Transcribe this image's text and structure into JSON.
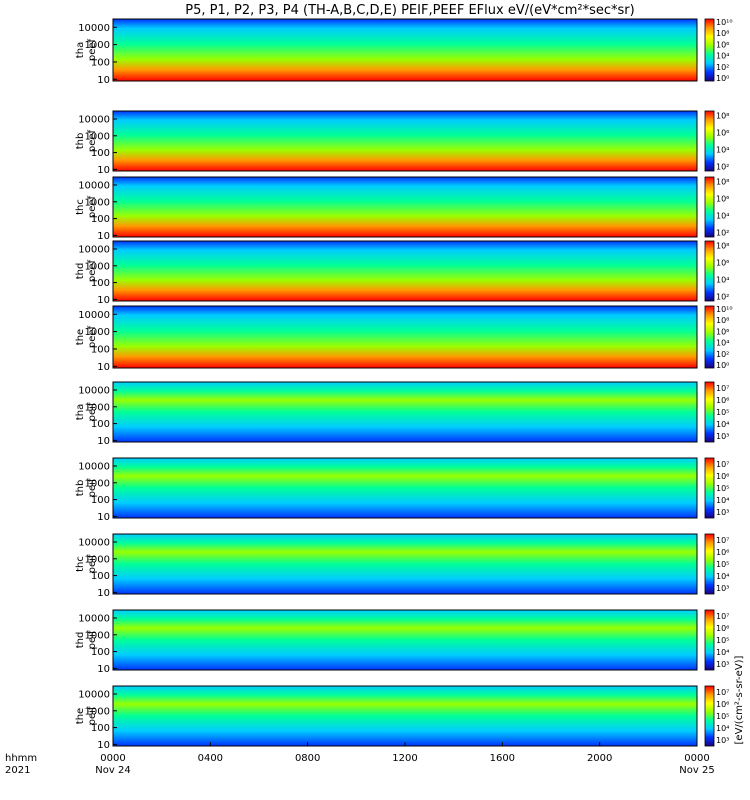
{
  "title": "P5, P1, P2, P3, P4 (TH-A,B,C,D,E) PEIF,PEEF EFlux eV/(eV*cm²*sec*sr)",
  "colorbar_label": "[eV/(cm²-s-sr-eV)]",
  "colormap": [
    "#1a0080",
    "#0033ff",
    "#00ccff",
    "#00ff99",
    "#99ff00",
    "#ffff00",
    "#ff9900",
    "#ff0000"
  ],
  "time_axis": {
    "row_label_1": "hhmm",
    "row_label_2": "2021",
    "ticks": [
      {
        "label": "0000",
        "sub": "Nov 24",
        "hour": 0
      },
      {
        "label": "0400",
        "sub": "",
        "hour": 4
      },
      {
        "label": "0800",
        "sub": "",
        "hour": 8
      },
      {
        "label": "1200",
        "sub": "",
        "hour": 12
      },
      {
        "label": "1600",
        "sub": "",
        "hour": 16
      },
      {
        "label": "2000",
        "sub": "",
        "hour": 20
      },
      {
        "label": "0000",
        "sub": "Nov 25",
        "hour": 24
      }
    ]
  },
  "chart_data": {
    "type": "heatmap",
    "x_range_hours": [
      0,
      24
    ],
    "y_scale": "log",
    "y_range_eV": [
      8,
      30000
    ],
    "y_ticks": [
      {
        "value": 10,
        "label": "10"
      },
      {
        "value": 100,
        "label": "100"
      },
      {
        "value": 1000,
        "label": "1000"
      },
      {
        "value": 10000,
        "label": "10000"
      }
    ],
    "panels": [
      {
        "line1": "tha",
        "line2": "peef",
        "species": "electron",
        "cb": [
          "10¹⁰",
          "10⁸",
          "10⁶",
          "10⁴",
          "10²",
          "10⁰"
        ],
        "cbexp": [
          10,
          8,
          6,
          4,
          2,
          0
        ]
      },
      {
        "line1": "thb",
        "line2": "peef",
        "species": "electron",
        "cb": [
          "10⁸",
          "10⁶",
          "10⁴",
          "10²"
        ],
        "cbexp": [
          8,
          6,
          4,
          2
        ]
      },
      {
        "line1": "thc",
        "line2": "peef",
        "species": "electron",
        "cb": [
          "10⁸",
          "10⁶",
          "10⁴",
          "10²"
        ],
        "cbexp": [
          8,
          6,
          4,
          2
        ]
      },
      {
        "line1": "thd",
        "line2": "peef",
        "species": "electron",
        "cb": [
          "10⁸",
          "10⁶",
          "10⁴",
          "10²"
        ],
        "cbexp": [
          8,
          6,
          4,
          2
        ]
      },
      {
        "line1": "the",
        "line2": "peef",
        "species": "electron",
        "cb": [
          "10¹⁰",
          "10⁸",
          "10⁶",
          "10⁴",
          "10²",
          "10⁰"
        ],
        "cbexp": [
          10,
          8,
          6,
          4,
          2,
          0
        ]
      },
      {
        "line1": "tha",
        "line2": "peif",
        "species": "ion",
        "cb": [
          "10⁷",
          "10⁶",
          "10⁵",
          "10⁴",
          "10³"
        ],
        "cbexp": [
          7,
          6,
          5,
          4,
          3
        ]
      },
      {
        "line1": "thb",
        "line2": "peif",
        "species": "ion",
        "cb": [
          "10⁷",
          "10⁶",
          "10⁵",
          "10⁴",
          "10³"
        ],
        "cbexp": [
          7,
          6,
          5,
          4,
          3
        ]
      },
      {
        "line1": "thc",
        "line2": "peif",
        "species": "ion",
        "cb": [
          "10⁷",
          "10⁶",
          "10⁵",
          "10⁴",
          "10³"
        ],
        "cbexp": [
          7,
          6,
          5,
          4,
          3
        ]
      },
      {
        "line1": "thd",
        "line2": "peif",
        "species": "ion",
        "cb": [
          "10⁷",
          "10⁶",
          "10⁵",
          "10⁴",
          "10³"
        ],
        "cbexp": [
          7,
          6,
          5,
          4,
          3
        ]
      },
      {
        "line1": "the",
        "line2": "peif",
        "species": "ion",
        "cb": [
          "10⁷",
          "10⁶",
          "10⁵",
          "10⁴",
          "10³"
        ],
        "cbexp": [
          7,
          6,
          5,
          4,
          3
        ]
      }
    ]
  }
}
